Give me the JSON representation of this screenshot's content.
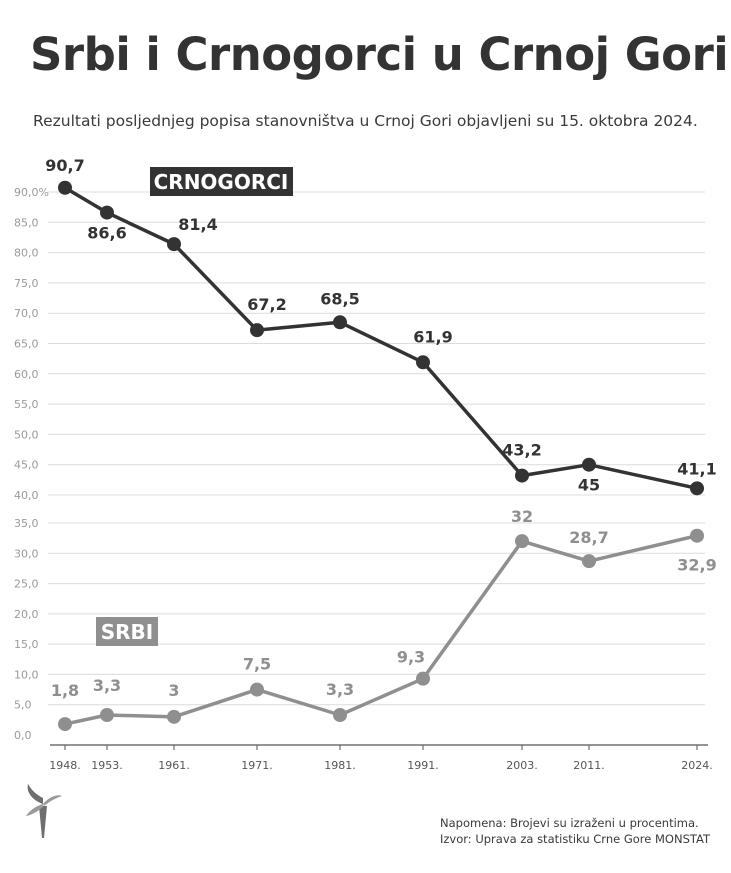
{
  "colors": {
    "crnogorci": "#333333",
    "srbi": "#8f8f8f",
    "grid": "#dcdcdc"
  },
  "chart_data": {
    "type": "line",
    "title": "Srbi i Crnogorci u Crnoj Gori",
    "subtitle": "Rezultati posljednjeg popisa stanovništva u Crnoj Gori objavljeni su 15. oktobra 2024.",
    "x": [
      "1948.",
      "1953.",
      "1961.",
      "1971.",
      "1981.",
      "1991.",
      "2003.",
      "2011.",
      "2024."
    ],
    "series": [
      {
        "name": "CRNOGORCI",
        "values": [
          90.7,
          86.6,
          81.4,
          67.2,
          68.5,
          61.9,
          43.2,
          45,
          41.1
        ],
        "labels": [
          "90,7",
          "86,6",
          "81,4",
          "67,2",
          "68,5",
          "61,9",
          "43,2",
          "45",
          "41,1"
        ]
      },
      {
        "name": "SRBI",
        "values": [
          1.8,
          3.3,
          3,
          7.5,
          3.3,
          9.3,
          32,
          28.7,
          32.9
        ],
        "labels": [
          "1,8",
          "3,3",
          "3",
          "7,5",
          "3,3",
          "9,3",
          "32",
          "28,7",
          "32,9"
        ]
      }
    ],
    "yticks_upper": [
      {
        "value": 90,
        "label": "90,0%"
      },
      {
        "value": 85,
        "label": "85,0"
      },
      {
        "value": 80,
        "label": "80,0"
      },
      {
        "value": 75,
        "label": "75,0"
      },
      {
        "value": 70,
        "label": "70,0"
      },
      {
        "value": 65,
        "label": "65,0"
      },
      {
        "value": 60,
        "label": "60,0"
      },
      {
        "value": 55,
        "label": "55,0"
      },
      {
        "value": 50,
        "label": "50,0"
      },
      {
        "value": 45,
        "label": "45,0"
      },
      {
        "value": 40,
        "label": "40,0"
      }
    ],
    "yticks_lower": [
      {
        "value": 35,
        "label": "35,0"
      },
      {
        "value": 30,
        "label": "30,0"
      },
      {
        "value": 25,
        "label": "25,0"
      },
      {
        "value": 20,
        "label": "20,0"
      },
      {
        "value": 15,
        "label": "15,0"
      },
      {
        "value": 10,
        "label": "10,0"
      },
      {
        "value": 5,
        "label": "5,0"
      },
      {
        "value": 0,
        "label": "0,0"
      }
    ],
    "grid": true
  },
  "note": {
    "line1": "Napomena: Brojevi su izraženi u procentima.",
    "line2": "Izvor: Uprava za statistiku Crne Gore MONSTAT"
  },
  "logo": {
    "icon": "rfe-torch-icon"
  }
}
